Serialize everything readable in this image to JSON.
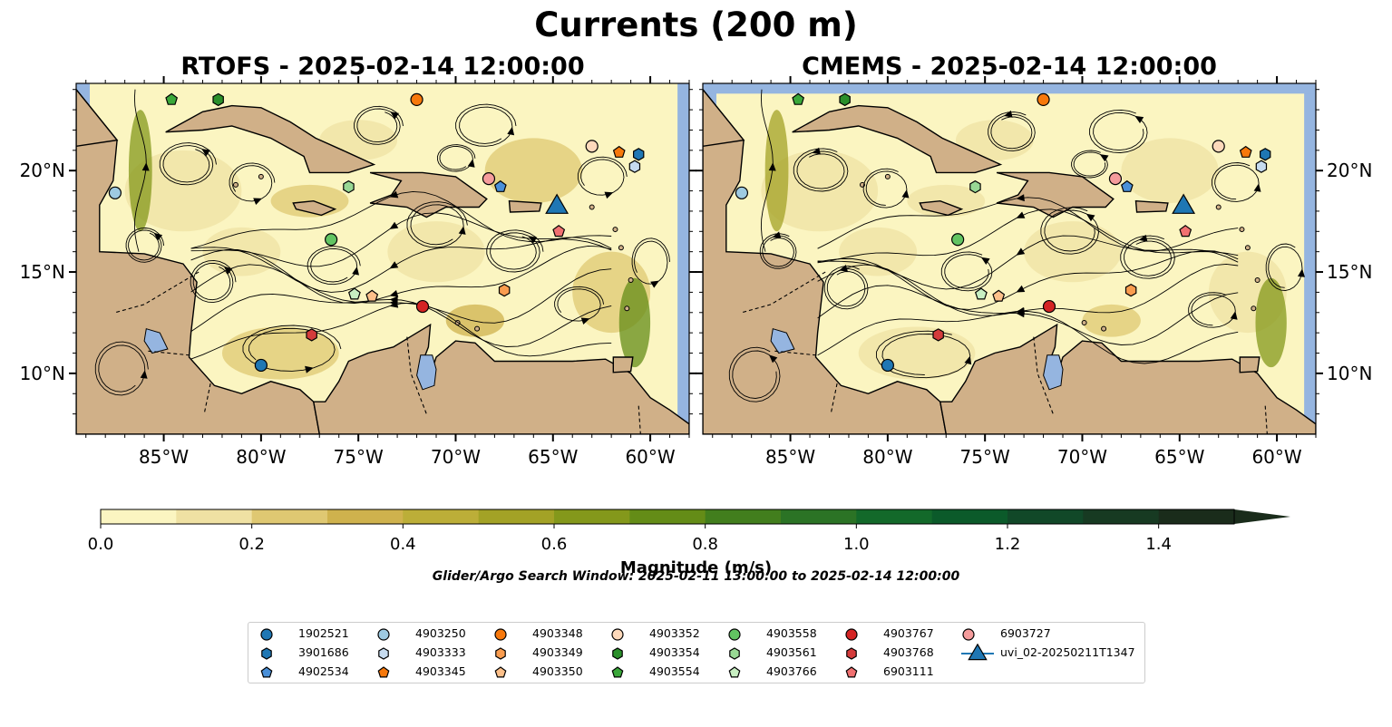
{
  "suptitle": "Currents (200 m)",
  "panels": [
    {
      "title": "RTOFS - 2025-02-14 12:00:00"
    },
    {
      "title": "CMEMS - 2025-02-14 12:00:00"
    }
  ],
  "colorbar": {
    "label": "Magnitude (m/s)",
    "ticks": [
      "0.0",
      "0.2",
      "0.4",
      "0.6",
      "0.8",
      "1.0",
      "1.2",
      "1.4"
    ],
    "colors": [
      "#fbf5c1",
      "#efe1a3",
      "#dfc872",
      "#cfb24d",
      "#bcae38",
      "#a3a226",
      "#84981b",
      "#648c17",
      "#427e1d",
      "#2b7325",
      "#13692a",
      "#0b5a2a",
      "#114828",
      "#173a22",
      "#1a2c1b"
    ]
  },
  "search_window": "Glider/Argo Search Window: 2025-02-11 13:00:00 to 2025-02-14 12:00:00",
  "colors": {
    "ocean": "#95b5e0",
    "land": "#d0b088",
    "glider": "#1f77b4"
  },
  "legend": [
    {
      "label": "1902521",
      "marker": "circle",
      "color": "#1f77b4"
    },
    {
      "label": "3901686",
      "marker": "hexagon",
      "color": "#1f77b4"
    },
    {
      "label": "4902534",
      "marker": "pentagon",
      "color": "#4a90d9"
    },
    {
      "label": "4903250",
      "marker": "circle",
      "color": "#9ecae1"
    },
    {
      "label": "4903333",
      "marker": "hexagon",
      "color": "#c6dbef"
    },
    {
      "label": "4903345",
      "marker": "pentagon",
      "color": "#f7780b"
    },
    {
      "label": "4903348",
      "marker": "circle",
      "color": "#f7780b"
    },
    {
      "label": "4903349",
      "marker": "hexagon",
      "color": "#f99c4f"
    },
    {
      "label": "4903350",
      "marker": "pentagon",
      "color": "#fdc08a"
    },
    {
      "label": "4903352",
      "marker": "circle",
      "color": "#fdd9bb"
    },
    {
      "label": "4903354",
      "marker": "hexagon",
      "color": "#2a8f2a"
    },
    {
      "label": "4903554",
      "marker": "pentagon",
      "color": "#3aa83a"
    },
    {
      "label": "4903558",
      "marker": "circle",
      "color": "#62c462"
    },
    {
      "label": "4903561",
      "marker": "hexagon",
      "color": "#98d894"
    },
    {
      "label": "4903766",
      "marker": "pentagon",
      "color": "#c8efc2"
    },
    {
      "label": "4903767",
      "marker": "circle",
      "color": "#d42424"
    },
    {
      "label": "4903768",
      "marker": "hexagon",
      "color": "#d43b3b"
    },
    {
      "label": "6903111",
      "marker": "pentagon",
      "color": "#f07070"
    },
    {
      "label": "6903727",
      "marker": "circle",
      "color": "#f59c9c"
    },
    {
      "label": "uvi_02-20250211T1347",
      "marker": "triangle",
      "color": "#1f77b4"
    }
  ],
  "chart_data": [
    {
      "type": "heatmap",
      "subtype": "ocean current magnitude map with streamlines",
      "title": "RTOFS - 2025-02-14 12:00:00",
      "xlabel": "",
      "ylabel": "",
      "xlim": [
        -89.5,
        -58
      ],
      "ylim": [
        7,
        24.3
      ],
      "xticks": [
        "85°W",
        "80°W",
        "75°W",
        "70°W",
        "65°W",
        "60°W"
      ],
      "yticks": [
        "10°N",
        "15°N",
        "20°N"
      ],
      "floats": [
        {
          "id": "1902521",
          "lon": -80.0,
          "lat": 10.4
        },
        {
          "id": "4903250",
          "lon": -87.5,
          "lat": 18.9
        },
        {
          "id": "4903348",
          "lon": -72.0,
          "lat": 23.5
        },
        {
          "id": "4903352",
          "lon": -63.0,
          "lat": 21.2
        },
        {
          "id": "4903558",
          "lon": -76.4,
          "lat": 16.6
        },
        {
          "id": "4903767",
          "lon": -71.7,
          "lat": 13.3
        },
        {
          "id": "6903727",
          "lon": -68.3,
          "lat": 19.6
        },
        {
          "id": "3901686",
          "lon": -60.6,
          "lat": 20.8
        },
        {
          "id": "4903333",
          "lon": -60.8,
          "lat": 20.2
        },
        {
          "id": "4903349",
          "lon": -67.5,
          "lat": 14.1
        },
        {
          "id": "4903354",
          "lon": -82.2,
          "lat": 23.5
        },
        {
          "id": "4903561",
          "lon": -75.5,
          "lat": 19.2
        },
        {
          "id": "4903768",
          "lon": -77.4,
          "lat": 11.9
        },
        {
          "id": "4902534",
          "lon": -67.7,
          "lat": 19.2
        },
        {
          "id": "4903345",
          "lon": -61.6,
          "lat": 20.9
        },
        {
          "id": "4903350",
          "lon": -74.3,
          "lat": 13.8
        },
        {
          "id": "4903554",
          "lon": -84.6,
          "lat": 23.5
        },
        {
          "id": "4903766",
          "lon": -75.2,
          "lat": 13.9
        },
        {
          "id": "6903111",
          "lon": -64.7,
          "lat": 17.0
        }
      ],
      "glider": {
        "id": "uvi_02-20250211T1347",
        "lon": -64.8,
        "lat": 18.2
      }
    },
    {
      "type": "heatmap",
      "subtype": "ocean current magnitude map with streamlines",
      "title": "CMEMS - 2025-02-14 12:00:00",
      "xlabel": "",
      "ylabel": "",
      "xlim": [
        -89.5,
        -58
      ],
      "ylim": [
        7,
        24.3
      ],
      "xticks": [
        "85°W",
        "80°W",
        "75°W",
        "70°W",
        "65°W",
        "60°W"
      ],
      "yticks": [
        "10°N",
        "15°N",
        "20°N"
      ],
      "floats": [
        {
          "id": "1902521",
          "lon": -80.0,
          "lat": 10.4
        },
        {
          "id": "4903250",
          "lon": -87.5,
          "lat": 18.9
        },
        {
          "id": "4903348",
          "lon": -72.0,
          "lat": 23.5
        },
        {
          "id": "4903352",
          "lon": -63.0,
          "lat": 21.2
        },
        {
          "id": "4903558",
          "lon": -76.4,
          "lat": 16.6
        },
        {
          "id": "4903767",
          "lon": -71.7,
          "lat": 13.3
        },
        {
          "id": "6903727",
          "lon": -68.3,
          "lat": 19.6
        },
        {
          "id": "3901686",
          "lon": -60.6,
          "lat": 20.8
        },
        {
          "id": "4903333",
          "lon": -60.8,
          "lat": 20.2
        },
        {
          "id": "4903349",
          "lon": -67.5,
          "lat": 14.1
        },
        {
          "id": "4903354",
          "lon": -82.2,
          "lat": 23.5
        },
        {
          "id": "4903561",
          "lon": -75.5,
          "lat": 19.2
        },
        {
          "id": "4903768",
          "lon": -77.4,
          "lat": 11.9
        },
        {
          "id": "4902534",
          "lon": -67.7,
          "lat": 19.2
        },
        {
          "id": "4903345",
          "lon": -61.6,
          "lat": 20.9
        },
        {
          "id": "4903350",
          "lon": -74.3,
          "lat": 13.8
        },
        {
          "id": "4903554",
          "lon": -84.6,
          "lat": 23.5
        },
        {
          "id": "4903766",
          "lon": -75.2,
          "lat": 13.9
        },
        {
          "id": "6903111",
          "lon": -64.7,
          "lat": 17.0
        }
      ],
      "glider": {
        "id": "uvi_02-20250211T1347",
        "lon": -64.8,
        "lat": 18.2
      }
    }
  ]
}
